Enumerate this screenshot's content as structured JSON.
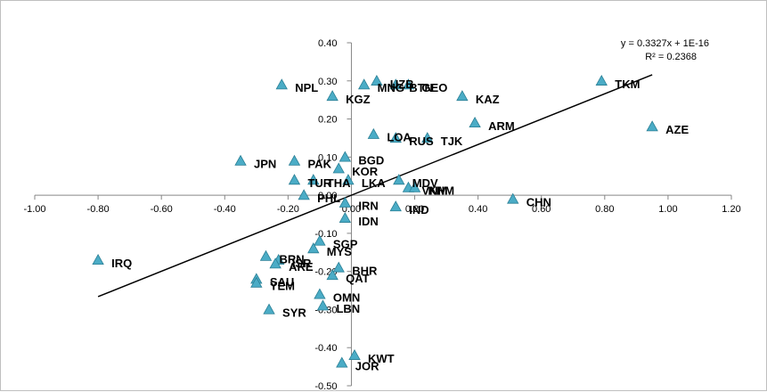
{
  "chart_data": {
    "type": "scatter",
    "xlim": [
      -1.0,
      1.2
    ],
    "ylim": [
      -0.5,
      0.4
    ],
    "xticks": [
      "-1.00",
      "-0.80",
      "-0.60",
      "-0.40",
      "-0.20",
      "0.00",
      "0.20",
      "0.40",
      "0.60",
      "0.80",
      "1.00",
      "1.20"
    ],
    "yticks": [
      "0.40",
      "0.30",
      "0.20",
      "0.10",
      "0.00",
      "-0.10",
      "-0.20",
      "-0.30",
      "-0.40",
      "-0.50"
    ],
    "marker_color": "#4BACC6",
    "trendline": {
      "slope": 0.3327,
      "intercept": 0.0,
      "x_range": [
        -0.8,
        0.95
      ],
      "equation": "y = 0.3327x + 1E-16",
      "r2": "R² = 0.2368"
    },
    "points": [
      {
        "label": "IRQ",
        "x": -0.8,
        "y": -0.17
      },
      {
        "label": "JPN",
        "x": -0.35,
        "y": 0.09
      },
      {
        "label": "NPL",
        "x": -0.22,
        "y": 0.29
      },
      {
        "label": "PAK",
        "x": -0.18,
        "y": 0.09
      },
      {
        "label": "TUR",
        "x": -0.18,
        "y": 0.04
      },
      {
        "label": "PHL",
        "x": -0.15,
        "y": 0.0
      },
      {
        "label": "THA",
        "x": -0.12,
        "y": 0.04
      },
      {
        "label": "KGZ",
        "x": -0.06,
        "y": 0.26
      },
      {
        "label": "KOR",
        "x": -0.04,
        "y": 0.07
      },
      {
        "label": "BGD",
        "x": -0.02,
        "y": 0.1
      },
      {
        "label": "LKA",
        "x": -0.01,
        "y": 0.04
      },
      {
        "label": "IRN",
        "x": -0.02,
        "y": -0.02
      },
      {
        "label": "IDN",
        "x": -0.02,
        "y": -0.06
      },
      {
        "label": "MNG",
        "x": 0.04,
        "y": 0.29
      },
      {
        "label": "UZB",
        "x": 0.08,
        "y": 0.3
      },
      {
        "label": "BTN",
        "x": 0.14,
        "y": 0.29
      },
      {
        "label": "GEO",
        "x": 0.18,
        "y": 0.29
      },
      {
        "label": "LOA",
        "x": 0.07,
        "y": 0.16
      },
      {
        "label": "RUS",
        "x": 0.14,
        "y": 0.15
      },
      {
        "label": "TJK",
        "x": 0.24,
        "y": 0.15
      },
      {
        "label": "KAZ",
        "x": 0.35,
        "y": 0.26
      },
      {
        "label": "ARM",
        "x": 0.39,
        "y": 0.19
      },
      {
        "label": "MDV",
        "x": 0.15,
        "y": 0.04
      },
      {
        "label": "VNM",
        "x": 0.18,
        "y": 0.02
      },
      {
        "label": "KHM",
        "x": 0.2,
        "y": 0.02
      },
      {
        "label": "IND",
        "x": 0.14,
        "y": -0.03
      },
      {
        "label": "CHN",
        "x": 0.51,
        "y": -0.01
      },
      {
        "label": "TKM",
        "x": 0.79,
        "y": 0.3
      },
      {
        "label": "AZE",
        "x": 0.95,
        "y": 0.18
      },
      {
        "label": "SGP",
        "x": -0.1,
        "y": -0.12
      },
      {
        "label": "MYS",
        "x": -0.12,
        "y": -0.14
      },
      {
        "label": "BRN",
        "x": -0.27,
        "y": -0.16
      },
      {
        "label": "ISR",
        "x": -0.23,
        "y": -0.17
      },
      {
        "label": "ARE",
        "x": -0.24,
        "y": -0.18
      },
      {
        "label": "BHR",
        "x": -0.04,
        "y": -0.19
      },
      {
        "label": "QAT",
        "x": -0.06,
        "y": -0.21
      },
      {
        "label": "SAU",
        "x": -0.3,
        "y": -0.22
      },
      {
        "label": "YEM",
        "x": -0.3,
        "y": -0.23
      },
      {
        "label": "OMN",
        "x": -0.1,
        "y": -0.26
      },
      {
        "label": "LBN",
        "x": -0.09,
        "y": -0.29
      },
      {
        "label": "SYR",
        "x": -0.26,
        "y": -0.3
      },
      {
        "label": "KWT",
        "x": 0.01,
        "y": -0.42
      },
      {
        "label": "JOR",
        "x": -0.03,
        "y": -0.44
      }
    ]
  }
}
